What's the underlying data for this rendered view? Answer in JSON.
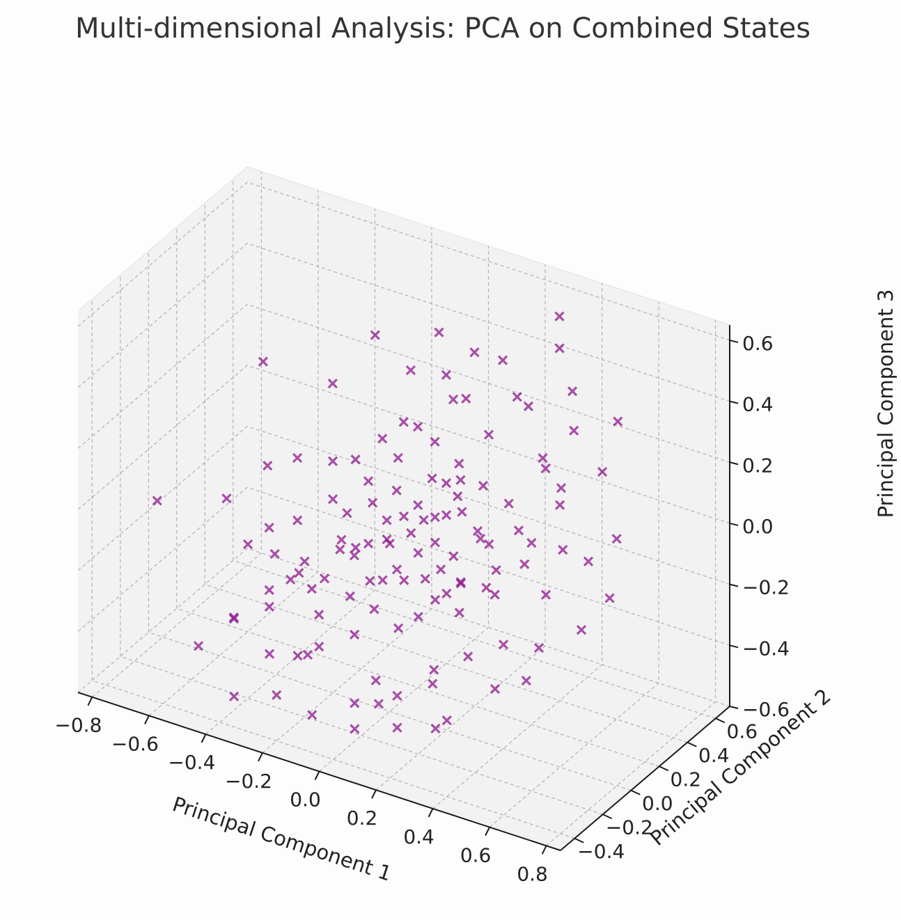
{
  "chart_data": {
    "type": "scatter",
    "projection": "3d",
    "title": "Multi-dimensional Analysis: PCA on Combined States",
    "xlabel": "Principal Component 1",
    "ylabel": "Principal Component 2",
    "zlabel": "Principal Component 3",
    "xlim": [
      -0.85,
      0.85
    ],
    "ylim": [
      -0.5,
      0.7
    ],
    "zlim": [
      -0.6,
      0.65
    ],
    "xticks": [
      -0.8,
      -0.6,
      -0.4,
      -0.2,
      0.0,
      0.2,
      0.4,
      0.6,
      0.8
    ],
    "xtick_labels": [
      "−0.8",
      "−0.6",
      "−0.4",
      "−0.2",
      "0.0",
      "0.2",
      "0.4",
      "0.6",
      "0.8"
    ],
    "yticks": [
      -0.4,
      -0.2,
      0.0,
      0.2,
      0.4,
      0.6
    ],
    "ytick_labels": [
      "−0.4",
      "−0.2",
      "0.0",
      "0.2",
      "0.4",
      "0.6"
    ],
    "zticks": [
      -0.6,
      -0.4,
      -0.2,
      0.0,
      0.2,
      0.4,
      0.6
    ],
    "ztick_labels": [
      "−0.6",
      "−0.4",
      "−0.2",
      "0.0",
      "0.2",
      "0.4",
      "0.6"
    ],
    "grid": true,
    "marker": "x",
    "marker_color": "#800080",
    "series": [
      {
        "points": [
          [
            -0.62,
            0.35,
            0.22
          ],
          [
            -0.35,
            0.3,
            0.25
          ],
          [
            -0.48,
            0.1,
            0.02
          ],
          [
            -0.55,
            -0.05,
            -0.05
          ],
          [
            -0.72,
            -0.2,
            -0.05
          ],
          [
            -0.4,
            -0.05,
            -0.1
          ],
          [
            -0.3,
            0.2,
            0.05
          ],
          [
            -0.2,
            0.1,
            -0.05
          ],
          [
            -0.15,
            0.25,
            0.15
          ],
          [
            -0.05,
            0.3,
            0.2
          ],
          [
            0.05,
            0.35,
            0.3
          ],
          [
            0.1,
            0.2,
            0.1
          ],
          [
            0.15,
            0.1,
            0.05
          ],
          [
            0.2,
            0.3,
            0.25
          ],
          [
            0.25,
            0.4,
            0.35
          ],
          [
            0.35,
            0.5,
            0.5
          ],
          [
            0.4,
            0.3,
            0.2
          ],
          [
            0.45,
            0.1,
            0.05
          ],
          [
            0.5,
            0.2,
            0.15
          ],
          [
            0.55,
            0.0,
            -0.05
          ],
          [
            0.6,
            0.3,
            0.25
          ],
          [
            0.65,
            0.1,
            0.05
          ],
          [
            0.7,
            -0.05,
            -0.1
          ],
          [
            0.3,
            -0.1,
            -0.05
          ],
          [
            0.2,
            -0.2,
            -0.15
          ],
          [
            0.1,
            -0.1,
            -0.1
          ],
          [
            0.0,
            0.0,
            -0.05
          ],
          [
            -0.1,
            -0.05,
            -0.1
          ],
          [
            -0.2,
            -0.15,
            -0.2
          ],
          [
            -0.3,
            -0.25,
            -0.25
          ],
          [
            -0.4,
            -0.3,
            -0.3
          ],
          [
            -0.5,
            -0.35,
            -0.4
          ],
          [
            -0.25,
            -0.35,
            -0.35
          ],
          [
            -0.1,
            -0.3,
            -0.3
          ],
          [
            0.0,
            -0.25,
            -0.25
          ],
          [
            0.1,
            -0.3,
            -0.35
          ],
          [
            0.2,
            -0.35,
            -0.35
          ],
          [
            0.3,
            -0.3,
            -0.3
          ],
          [
            0.4,
            -0.25,
            -0.2
          ],
          [
            0.5,
            -0.2,
            -0.15
          ],
          [
            0.4,
            -0.4,
            -0.35
          ],
          [
            0.25,
            -0.45,
            -0.4
          ],
          [
            0.1,
            -0.45,
            -0.45
          ],
          [
            -0.05,
            -0.45,
            -0.45
          ],
          [
            -0.2,
            -0.4,
            -0.45
          ],
          [
            -0.35,
            -0.4,
            -0.5
          ],
          [
            -0.45,
            -0.2,
            -0.35
          ],
          [
            -0.25,
            0.4,
            0.4
          ],
          [
            -0.05,
            0.45,
            0.45
          ],
          [
            0.15,
            0.5,
            0.4
          ],
          [
            0.3,
            0.6,
            0.55
          ],
          [
            -0.3,
            0.0,
            -0.2
          ],
          [
            -0.2,
            0.05,
            -0.15
          ],
          [
            -0.1,
            0.05,
            -0.1
          ],
          [
            0.0,
            0.1,
            0.0
          ],
          [
            0.05,
            0.05,
            -0.02
          ],
          [
            0.1,
            0.0,
            -0.05
          ],
          [
            0.15,
            -0.05,
            -0.1
          ],
          [
            0.2,
            0.05,
            -0.05
          ],
          [
            0.25,
            0.0,
            -0.1
          ],
          [
            0.3,
            0.1,
            0.0
          ],
          [
            0.35,
            0.05,
            -0.05
          ],
          [
            -0.15,
            0.15,
            0.05
          ],
          [
            -0.05,
            0.15,
            0.05
          ],
          [
            0.05,
            0.2,
            0.1
          ],
          [
            0.12,
            0.25,
            0.15
          ],
          [
            0.18,
            0.15,
            0.05
          ],
          [
            -0.25,
            0.1,
            -0.02
          ],
          [
            -0.35,
            0.05,
            -0.1
          ],
          [
            -0.28,
            -0.08,
            -0.2
          ],
          [
            -0.18,
            -0.1,
            -0.18
          ],
          [
            -0.08,
            -0.12,
            -0.2
          ],
          [
            0.02,
            -0.15,
            -0.2
          ],
          [
            0.12,
            -0.18,
            -0.22
          ],
          [
            0.22,
            -0.12,
            -0.12
          ],
          [
            0.32,
            -0.15,
            -0.12
          ],
          [
            0.42,
            -0.1,
            -0.05
          ],
          [
            0.08,
            0.08,
            0.02
          ],
          [
            -0.02,
            0.02,
            -0.05
          ],
          [
            -0.12,
            0.0,
            -0.1
          ],
          [
            0.18,
            0.0,
            -0.08
          ],
          [
            0.28,
            0.08,
            0.02
          ],
          [
            0.05,
            -0.05,
            -0.1
          ],
          [
            -0.08,
            0.22,
            0.12
          ],
          [
            0.02,
            0.28,
            0.18
          ],
          [
            0.22,
            0.22,
            0.12
          ],
          [
            0.32,
            0.2,
            0.1
          ],
          [
            0.38,
            0.15,
            0.05
          ],
          [
            -0.4,
            0.15,
            0.05
          ],
          [
            -0.45,
            -0.1,
            -0.15
          ],
          [
            -0.35,
            -0.15,
            -0.25
          ],
          [
            -0.15,
            -0.2,
            -0.25
          ],
          [
            0.0,
            -0.05,
            -0.15
          ],
          [
            0.1,
            0.12,
            0.02
          ],
          [
            0.15,
            0.18,
            0.08
          ],
          [
            -0.05,
            0.08,
            -0.02
          ],
          [
            0.25,
            0.12,
            0.02
          ],
          [
            0.35,
            -0.02,
            -0.08
          ],
          [
            0.45,
            0.05,
            0.0
          ],
          [
            0.55,
            0.12,
            0.05
          ],
          [
            0.48,
            0.25,
            0.18
          ],
          [
            0.6,
            -0.15,
            -0.15
          ],
          [
            0.52,
            -0.3,
            -0.25
          ],
          [
            0.62,
            -0.28,
            -0.2
          ],
          [
            0.35,
            -0.38,
            -0.4
          ],
          [
            0.15,
            -0.38,
            -0.38
          ],
          [
            -0.15,
            -0.28,
            -0.35
          ],
          [
            -0.3,
            -0.1,
            -0.22
          ],
          [
            -0.22,
            0.2,
            0.08
          ],
          [
            -0.1,
            0.3,
            0.2
          ],
          [
            0.08,
            0.38,
            0.3
          ],
          [
            0.28,
            0.42,
            0.32
          ],
          [
            0.45,
            0.4,
            0.3
          ],
          [
            0.58,
            0.45,
            0.35
          ],
          [
            -0.12,
            0.12,
            0.0
          ],
          [
            0.03,
            0.14,
            0.03
          ],
          [
            0.13,
            0.06,
            -0.03
          ],
          [
            0.23,
            -0.06,
            -0.12
          ],
          [
            -0.03,
            -0.08,
            -0.15
          ],
          [
            -0.18,
            0.02,
            -0.1
          ],
          [
            0.38,
            0.32,
            0.22
          ],
          [
            0.42,
            0.45,
            0.4
          ],
          [
            0.7,
            0.2,
            0.1
          ],
          [
            0.75,
            0.05,
            -0.02
          ],
          [
            0.05,
            0.3,
            0.4
          ],
          [
            0.1,
            0.4,
            0.45
          ],
          [
            -0.1,
            0.35,
            0.35
          ],
          [
            0.2,
            0.1,
            0.18
          ],
          [
            -0.2,
            -0.25,
            -0.38
          ],
          [
            0.05,
            -0.35,
            -0.42
          ],
          [
            0.28,
            -0.25,
            -0.28
          ],
          [
            -0.38,
            -0.05,
            -0.18
          ]
        ]
      }
    ]
  }
}
